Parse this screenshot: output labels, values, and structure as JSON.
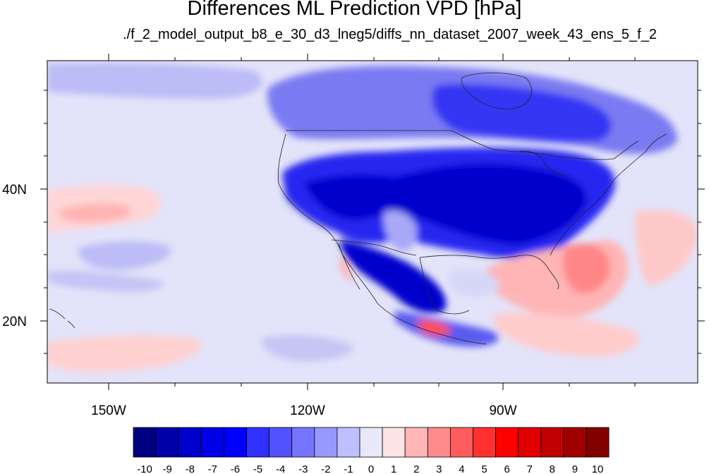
{
  "header": {
    "title": "Differences ML Prediction VPD [hPa]",
    "subtitle": "./f_2_model_output_b8_e_30_d3_lneg5/diffs_nn_dataset_2007_week_43_ens_5_f_2"
  },
  "map": {
    "projection": "cylindrical-equidistant",
    "lon_range": [
      -159.5,
      -60
    ],
    "lat_range": [
      10.5,
      59.5
    ],
    "lon_tick_labels": [
      "150W",
      "120W",
      "90W"
    ],
    "lat_tick_labels": [
      "40N",
      "20N"
    ],
    "variable": "VPD difference",
    "units": "hPa",
    "regions": [
      {
        "region": "interior western & central US",
        "diff_hPa": -6
      },
      {
        "region": "eastern US / Ohio valley",
        "diff_hPa": -6
      },
      {
        "region": "central Canada / Hudson Bay",
        "diff_hPa": -5
      },
      {
        "region": "northern Mexico",
        "diff_hPa": -6
      },
      {
        "region": "Gulf of Mexico",
        "diff_hPa": -1
      },
      {
        "region": "Caribbean / western Atlantic",
        "diff_hPa": 2
      },
      {
        "region": "western Mexico coast (Jalisco)",
        "diff_hPa": 5
      },
      {
        "region": "subtropical Pacific band",
        "diff_hPa": 1
      },
      {
        "region": "open Pacific",
        "diff_hPa": -1
      }
    ]
  },
  "colorbar": {
    "tick_labels": [
      "-10",
      "-9",
      "-8",
      "-7",
      "-6",
      "-5",
      "-4",
      "-3",
      "-2",
      "-1",
      "0",
      "1",
      "2",
      "3",
      "4",
      "5",
      "6",
      "7",
      "8",
      "9",
      "10"
    ],
    "colors": [
      "#000080",
      "#0000a8",
      "#0000cd",
      "#0000e6",
      "#0000ff",
      "#3030ff",
      "#5252ff",
      "#7575ff",
      "#9898ff",
      "#bfbfff",
      "#e8e8fa",
      "#fde4e4",
      "#ffb6b6",
      "#ff8a8a",
      "#ff5d5d",
      "#ff3030",
      "#ff0000",
      "#e00000",
      "#c00000",
      "#a00000",
      "#800000"
    ]
  }
}
